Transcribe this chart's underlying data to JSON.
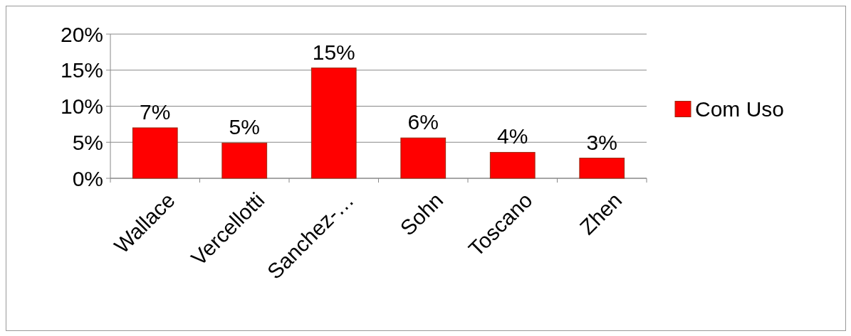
{
  "chart_data": {
    "type": "bar",
    "categories": [
      "Wallace",
      "Vercellotti",
      "Sanchez-…",
      "Sohn",
      "Toscano",
      "Zhen"
    ],
    "series": [
      {
        "name": "Com Uso",
        "color": "#ff0000",
        "values": [
          7,
          4.9,
          15.3,
          5.6,
          3.6,
          2.8
        ],
        "value_labels": [
          "7%",
          "5%",
          "15%",
          "6%",
          "4%",
          "3%"
        ]
      }
    ],
    "ylim": [
      0,
      20
    ],
    "yticks": [
      {
        "value": 0,
        "label": "0%"
      },
      {
        "value": 5,
        "label": "5%"
      },
      {
        "value": 10,
        "label": "10%"
      },
      {
        "value": 15,
        "label": "15%"
      },
      {
        "value": 20,
        "label": "20%"
      }
    ],
    "grid": "y",
    "legend": "right"
  }
}
